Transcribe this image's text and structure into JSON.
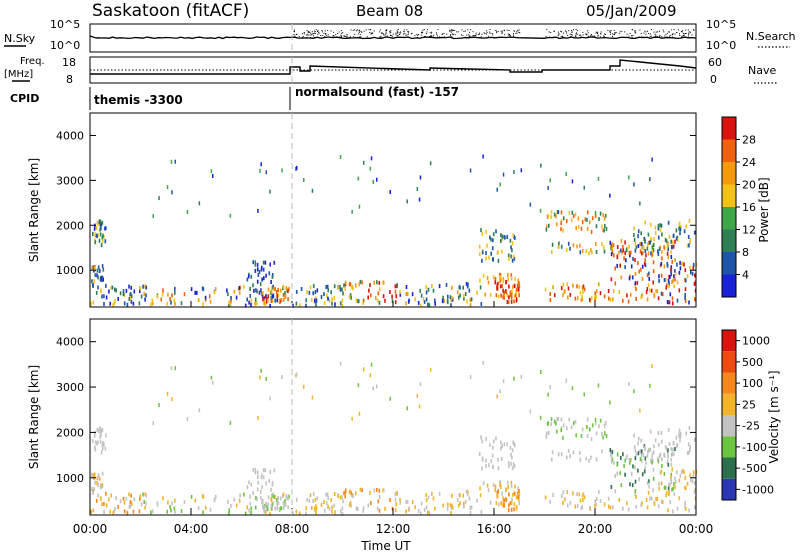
{
  "header": {
    "station": "Saskatoon (fitACF)",
    "beam": "Beam 08",
    "date": "05/Jan/2009"
  },
  "chart_data": [
    {
      "type": "line",
      "panel": "noise",
      "ylabel_left": "N.Sky",
      "ylabel_right": "N.Search",
      "left_ticks": [
        "10^5",
        "10^0"
      ],
      "right_ticks": [
        "10^5",
        "10^0"
      ]
    },
    {
      "type": "line",
      "panel": "frequency",
      "ylabel_left_top": "Freq.",
      "ylabel_left_bottom": "[MHz]",
      "ylabel_right": "Nave",
      "left_ticks": [
        "18",
        "8"
      ],
      "right_ticks": [
        "60",
        "0"
      ]
    },
    {
      "type": "table",
      "panel": "cpid",
      "label": "CPID",
      "segments": [
        {
          "start_hour": 0,
          "text": "themis -3300"
        },
        {
          "start_hour": 8,
          "text": "normalsound (fast) -157"
        }
      ]
    },
    {
      "type": "heatmap",
      "panel": "power",
      "ylabel": "Slant Range [km]",
      "xlim": [
        0,
        24
      ],
      "ylim": [
        180,
        4500
      ],
      "y_ticks": [
        "1000",
        "2000",
        "3000",
        "4000"
      ],
      "colorbar_label": "Power [dB]",
      "colorbar_ticks": [
        "4",
        "8",
        "12",
        "16",
        "20",
        "24",
        "28"
      ],
      "colors": [
        "#1a22d6",
        "#1f55a8",
        "#2f7f55",
        "#3fa64a",
        "#f2c21b",
        "#f59a10",
        "#f0620e",
        "#d9130f"
      ]
    },
    {
      "type": "heatmap",
      "panel": "velocity",
      "ylabel": "Slant Range [km]",
      "xlim": [
        0,
        24
      ],
      "ylim": [
        180,
        4500
      ],
      "y_ticks": [
        "1000",
        "2000",
        "3000",
        "4000"
      ],
      "colorbar_label": "Velocity [m s⁻¹]",
      "colorbar_ticks": [
        "1000",
        "500",
        "100",
        "25",
        "-25",
        "-100",
        "-500",
        "-1000"
      ],
      "colors": [
        "#2a36b4",
        "#2d6e4c",
        "#6cc441",
        "#c3c3c3",
        "#f4b42a",
        "#f6871c",
        "#ef4a12",
        "#d8140f"
      ]
    }
  ],
  "x_axis": {
    "ticks": [
      "00:00",
      "04:00",
      "08:00",
      "12:00",
      "16:00",
      "20:00",
      "00:00"
    ],
    "xlabel": "Time UT"
  }
}
